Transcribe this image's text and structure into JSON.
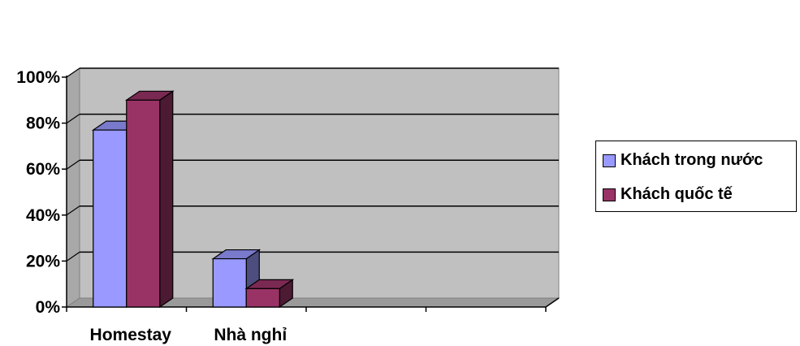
{
  "chart_data": {
    "type": "bar",
    "categories": [
      "Homestay",
      "Nhà nghỉ",
      "",
      ""
    ],
    "series": [
      {
        "name": "Khách trong nước",
        "values": [
          77,
          21,
          null,
          null
        ],
        "color": "#9999FF"
      },
      {
        "name": "Khách quốc tế",
        "values": [
          90,
          8,
          null,
          null
        ],
        "color": "#993366"
      }
    ],
    "yticks": [
      "0%",
      "20%",
      "40%",
      "60%",
      "80%",
      "100%"
    ],
    "ylim": [
      0,
      100
    ],
    "grid": true,
    "legend_position": "right",
    "title": "",
    "xlabel": "",
    "ylabel": ""
  }
}
